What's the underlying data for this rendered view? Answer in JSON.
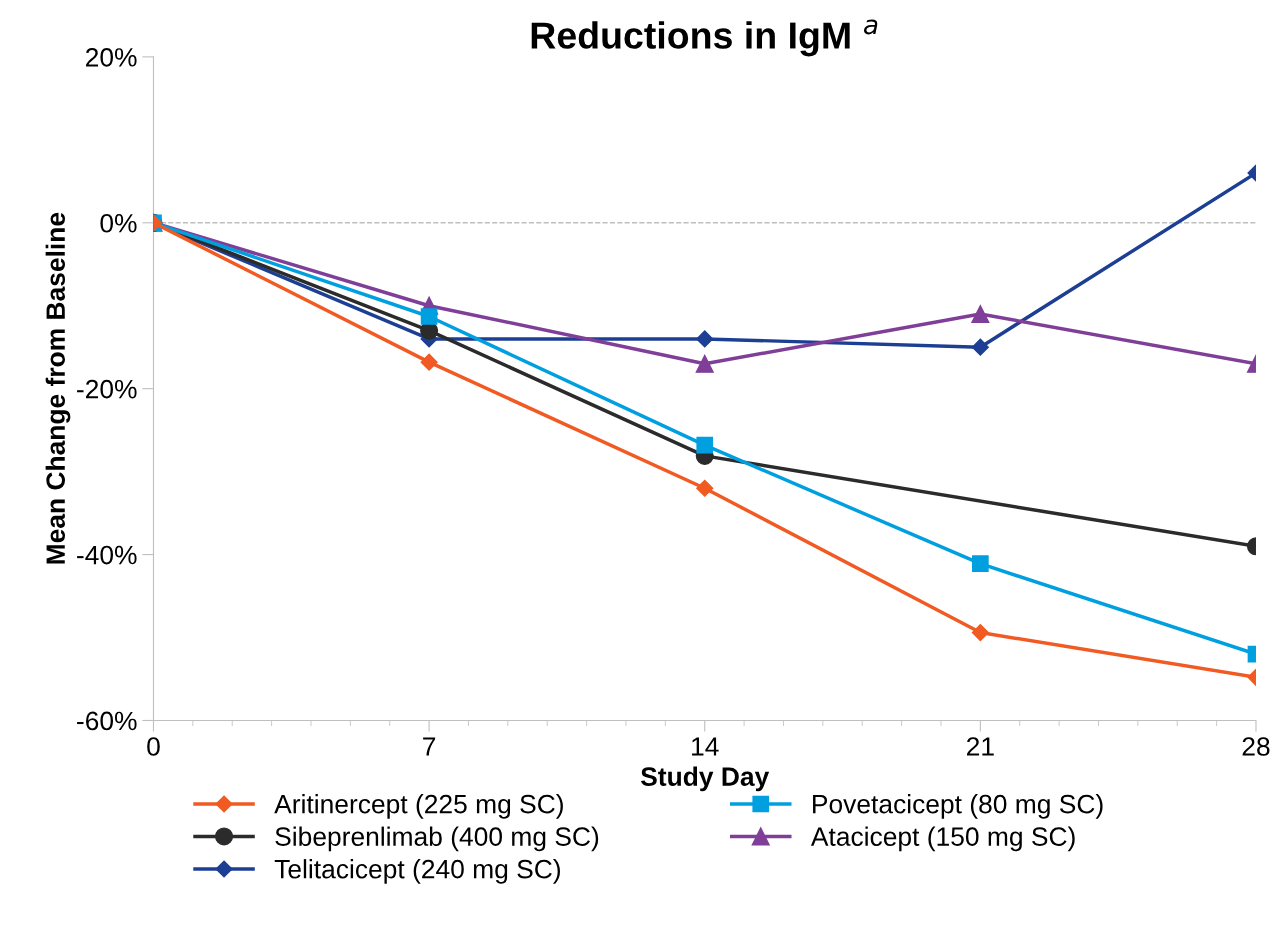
{
  "chart_data": {
    "type": "line",
    "title": "Reductions in IgM $^{a}$",
    "xlabel": "Study Day",
    "ylabel": "Mean Change from Baseline",
    "x": [
      0,
      7,
      14,
      21,
      28
    ],
    "xlim": [
      0,
      28
    ],
    "xticks": [
      0,
      7,
      14,
      21,
      28
    ],
    "ylim": [
      -60,
      20
    ],
    "yticks": [
      {
        "value": -60,
        "label": "-60%"
      },
      {
        "value": -40,
        "label": "-40%"
      },
      {
        "value": -20,
        "label": "-20%"
      },
      {
        "value": 0,
        "label": "0%"
      },
      {
        "value": 20,
        "label": "20%"
      }
    ],
    "grid": false,
    "legend": "bottom",
    "ref_lines": [
      {
        "axis": "y",
        "value": 0,
        "color": "#bfbfbf",
        "line_style": "dashed"
      }
    ],
    "series": [
      {
        "name": "Aritinercept (225 mg SC)",
        "color": "#f15a22",
        "marker": "diamond",
        "values": [
          0,
          -16.8,
          -32,
          -49.4,
          -54.8
        ]
      },
      {
        "name": "Povetacicept (80 mg SC)",
        "color": "#009fdf",
        "marker": "square",
        "values": [
          0,
          -11.3,
          -26.8,
          -41.1,
          -52
        ]
      },
      {
        "name": "Sibeprenlimab (400 mg SC)",
        "color": "#2b2b2b",
        "marker": "circle",
        "x": [
          0,
          7,
          14,
          28
        ],
        "values": [
          0,
          -13,
          -28.1,
          -39
        ]
      },
      {
        "name": "Atacicept (150 mg SC)",
        "color": "#7f3f98",
        "marker": "triangle",
        "values": [
          0,
          -10,
          -17,
          -11,
          -17
        ]
      },
      {
        "name": "Telitacicept (240 mg SC)",
        "color": "#1c3f94",
        "marker": "diamond",
        "values": [
          0,
          -14,
          -14,
          -15,
          6
        ]
      }
    ]
  }
}
